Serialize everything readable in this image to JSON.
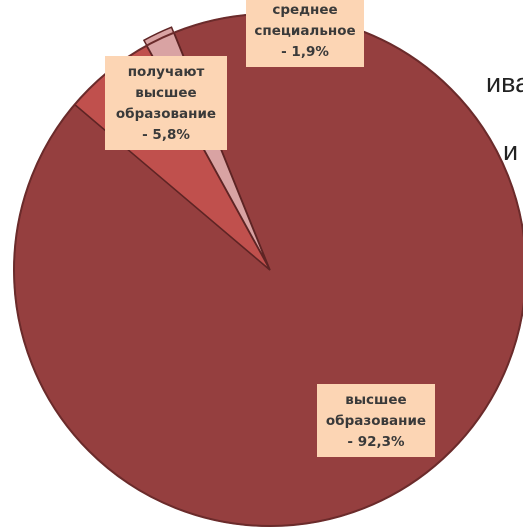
{
  "page_fragments": [
    "ива",
    "и"
  ],
  "chart_data": {
    "type": "pie",
    "title": "",
    "start_angle_deg": -22,
    "slices": [
      {
        "label_lines": [
          "высшее",
          "образование",
          "- 92,3%"
        ],
        "value": 92.3,
        "color": "#953f3f"
      },
      {
        "label_lines": [
          "получают",
          "высшее",
          "образование",
          "- 5,8%"
        ],
        "value": 5.8,
        "color": "#c0504d"
      },
      {
        "label_lines": [
          "среднее",
          "специальное",
          "- 1,9%"
        ],
        "value": 1.9,
        "color": "#d9a3a3"
      }
    ],
    "label_box_color": "#fcd5b4",
    "legend": "none"
  }
}
